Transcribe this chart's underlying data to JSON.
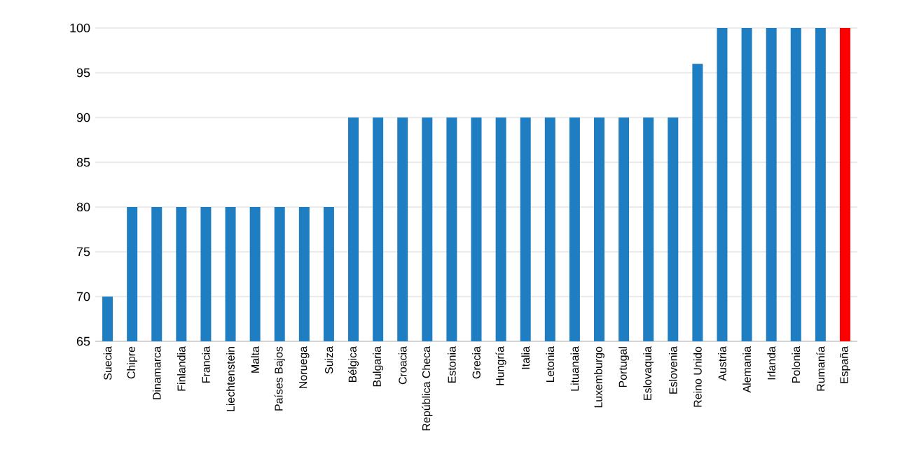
{
  "chart_data": {
    "type": "bar",
    "categories": [
      "Suecia",
      "Chipre",
      "Dinamarca",
      "Finlandia",
      "Francia",
      "Liechtenstein",
      "Malta",
      "Países Bajos",
      "Noruega",
      "Suiza",
      "Bélgica",
      "Bulgaria",
      "Croacia",
      "República Checa",
      "Estonia",
      "Grecia",
      "Hungría",
      "Italia",
      "Letonia",
      "Lituanaia",
      "Luxemburgo",
      "Portugal",
      "Eslovaquia",
      "Eslovenia",
      "Reino Unido",
      "Austria",
      "Alemania",
      "Irlanda",
      "Polonia",
      "Rumanía",
      "España"
    ],
    "values": [
      70,
      80,
      80,
      80,
      80,
      80,
      80,
      80,
      80,
      80,
      90,
      90,
      90,
      90,
      90,
      90,
      90,
      90,
      90,
      90,
      90,
      90,
      90,
      90,
      96,
      100,
      100,
      100,
      100,
      100,
      100
    ],
    "colors": [
      "#1f7dc1",
      "#1f7dc1",
      "#1f7dc1",
      "#1f7dc1",
      "#1f7dc1",
      "#1f7dc1",
      "#1f7dc1",
      "#1f7dc1",
      "#1f7dc1",
      "#1f7dc1",
      "#1f7dc1",
      "#1f7dc1",
      "#1f7dc1",
      "#1f7dc1",
      "#1f7dc1",
      "#1f7dc1",
      "#1f7dc1",
      "#1f7dc1",
      "#1f7dc1",
      "#1f7dc1",
      "#1f7dc1",
      "#1f7dc1",
      "#1f7dc1",
      "#1f7dc1",
      "#1f7dc1",
      "#1f7dc1",
      "#1f7dc1",
      "#1f7dc1",
      "#1f7dc1",
      "#1f7dc1",
      "#ff0000"
    ],
    "ylim": [
      65,
      100
    ],
    "yticks": [
      65,
      70,
      75,
      80,
      85,
      90,
      95,
      100
    ],
    "grid": "y"
  }
}
